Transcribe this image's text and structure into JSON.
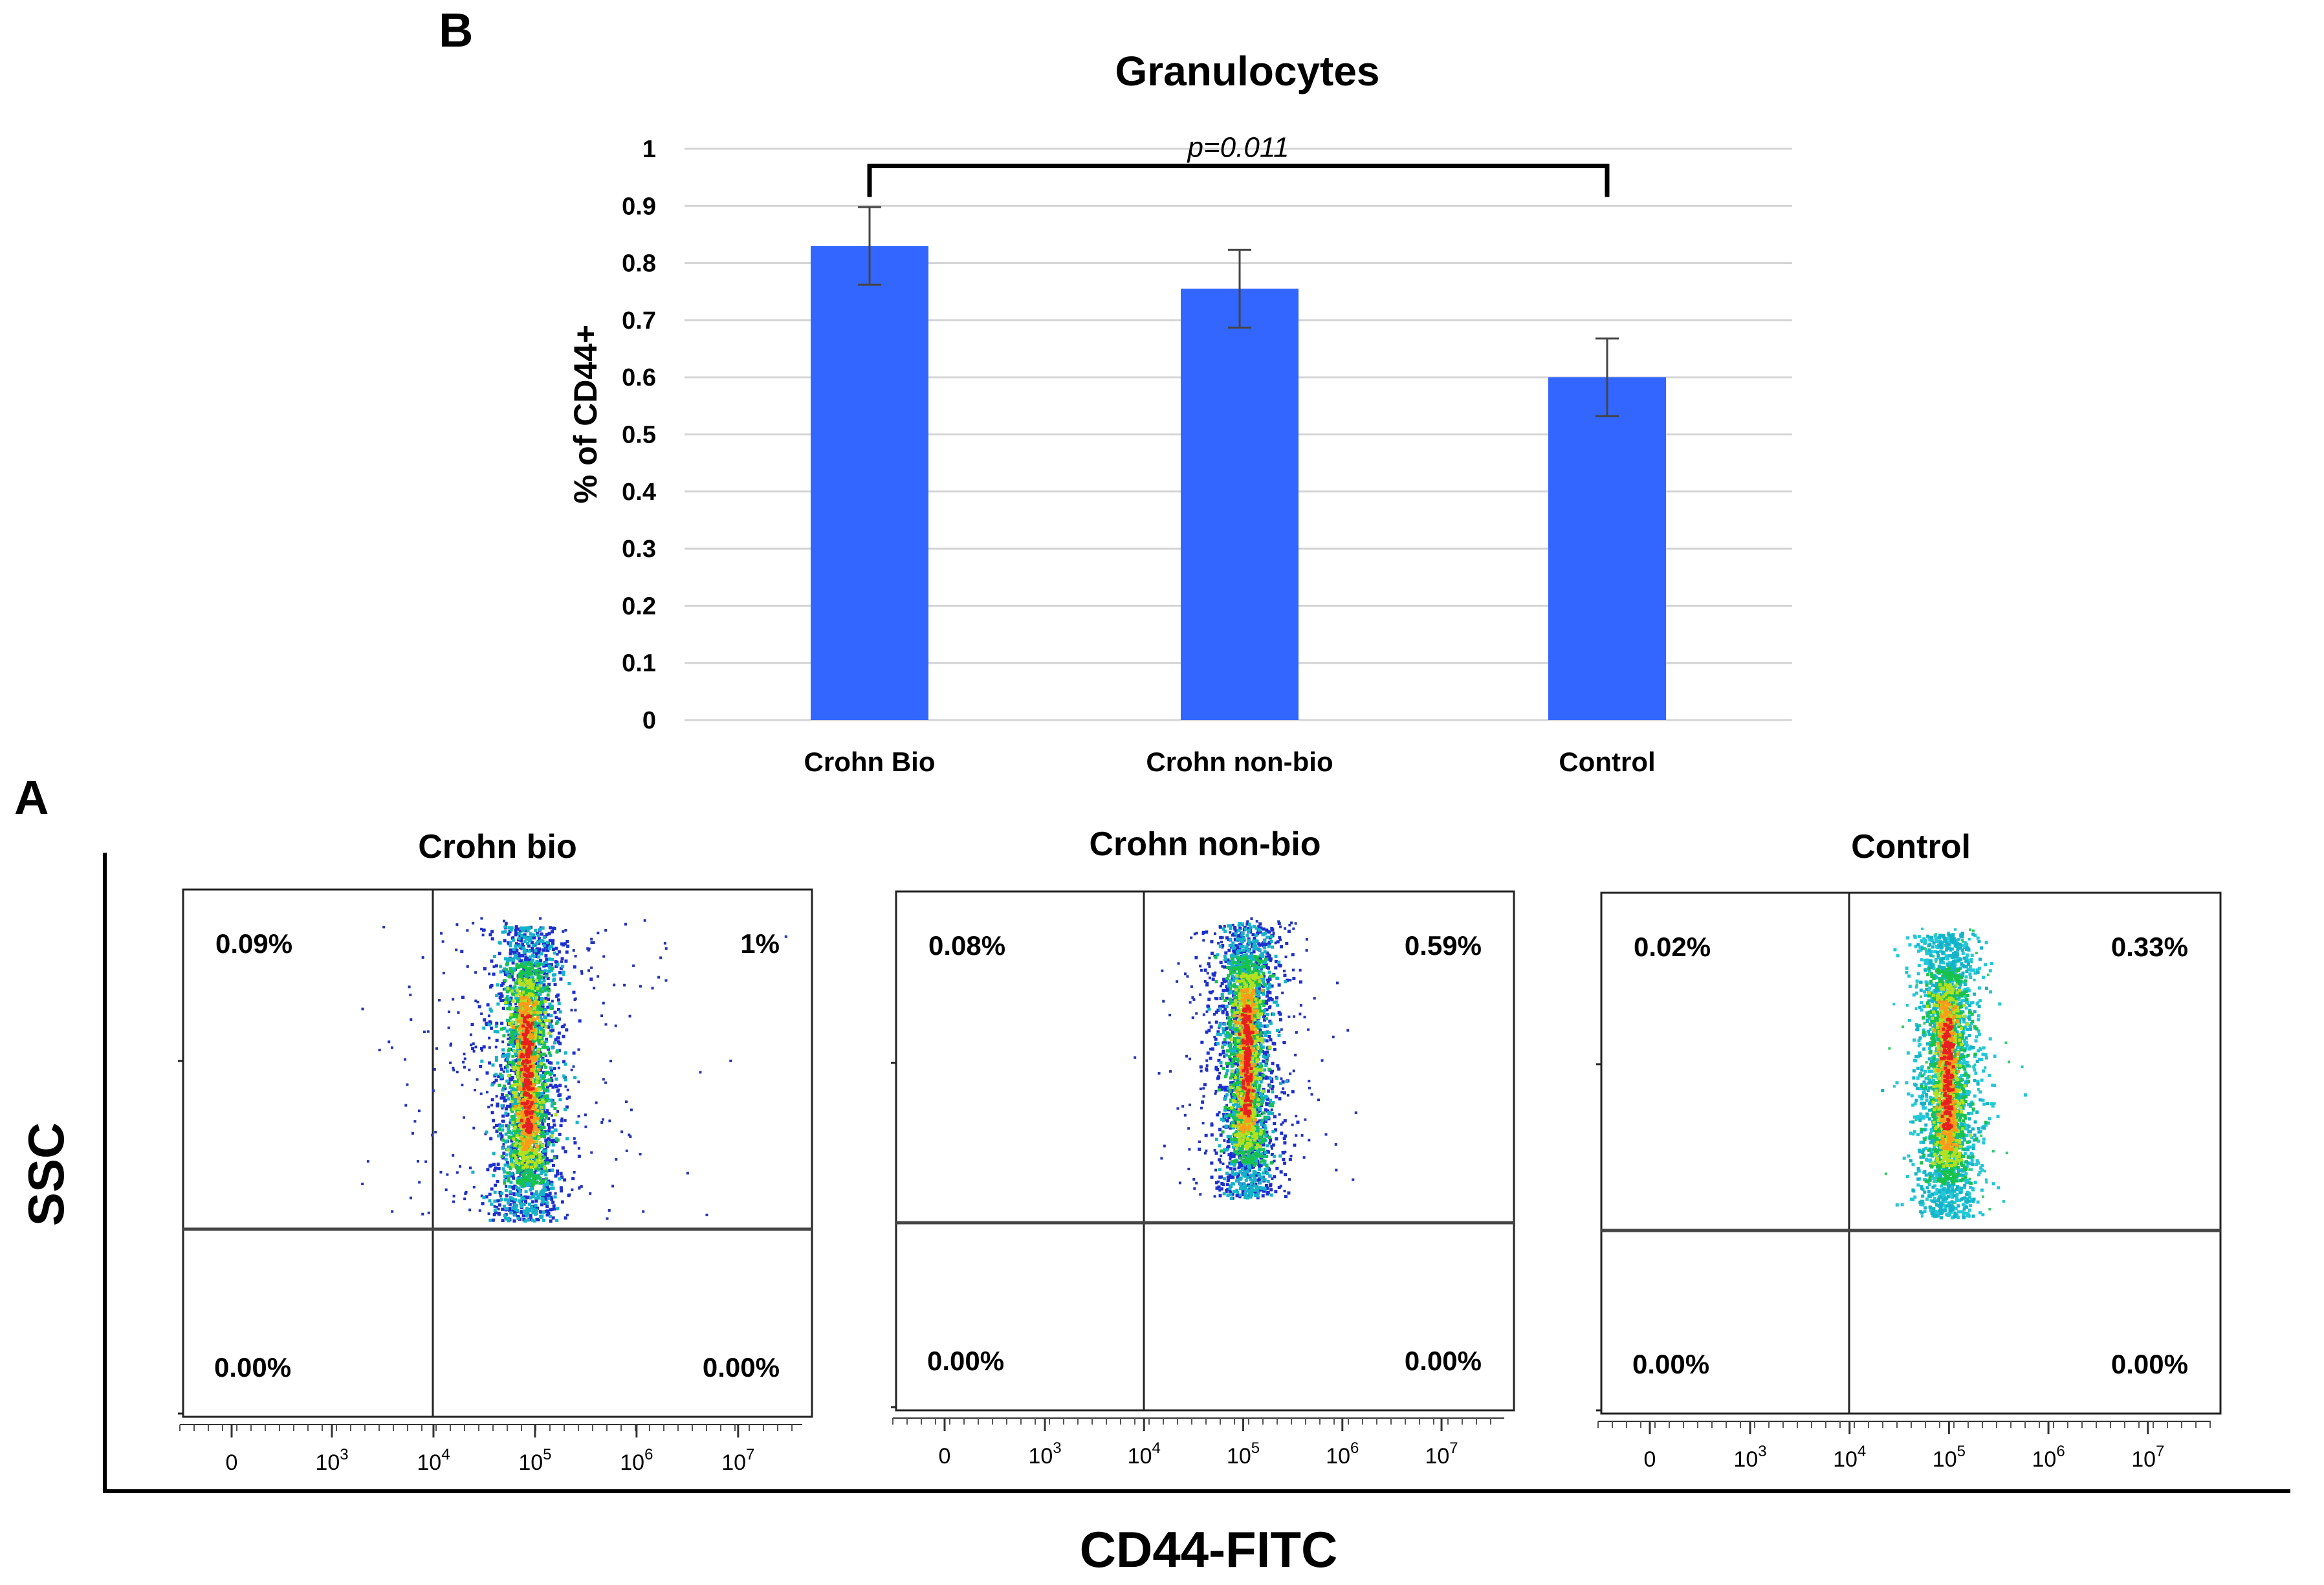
{
  "chart_data": [
    {
      "panel": "B",
      "type": "bar",
      "title": "Granulocytes",
      "ylabel": "% of CD44+",
      "xlabel": "",
      "ylim": [
        0,
        1
      ],
      "yticks": [
        "0",
        "0.1",
        "0.2",
        "0.3",
        "0.4",
        "0.5",
        "0.6",
        "0.7",
        "0.8",
        "0.9",
        "1"
      ],
      "grid": true,
      "categories": [
        "Crohn Bio",
        "Crohn non-bio",
        "Control"
      ],
      "values": [
        0.83,
        0.755,
        0.6
      ],
      "errors": [
        0.068,
        0.068,
        0.068
      ],
      "bar_color": "#3366ff",
      "annotation": {
        "text": "p=0.011",
        "from": "Crohn Bio",
        "to": "Control",
        "y": 0.97
      }
    },
    {
      "panel": "A",
      "type": "scatter",
      "xlabel": "CD44-FITC",
      "ylabel": "SSC",
      "xticks": [
        "0",
        "10",
        "10",
        "10",
        "10",
        "10"
      ],
      "xtick_exponents": [
        "",
        "3",
        "4",
        "5",
        "6",
        "7"
      ],
      "plots": [
        {
          "title": "Crohn bio",
          "quadrants": {
            "upper_left": "0.09%",
            "upper_right": "1%",
            "lower_left": "0.00%",
            "lower_right": "0.00%"
          }
        },
        {
          "title": "Crohn non-bio",
          "quadrants": {
            "upper_left": "0.08%",
            "upper_right": "0.59%",
            "lower_left": "0.00%",
            "lower_right": "0.00%"
          }
        },
        {
          "title": "Control",
          "quadrants": {
            "upper_left": "0.02%",
            "upper_right": "0.33%",
            "lower_left": "0.00%",
            "lower_right": "0.00%"
          }
        }
      ]
    }
  ]
}
